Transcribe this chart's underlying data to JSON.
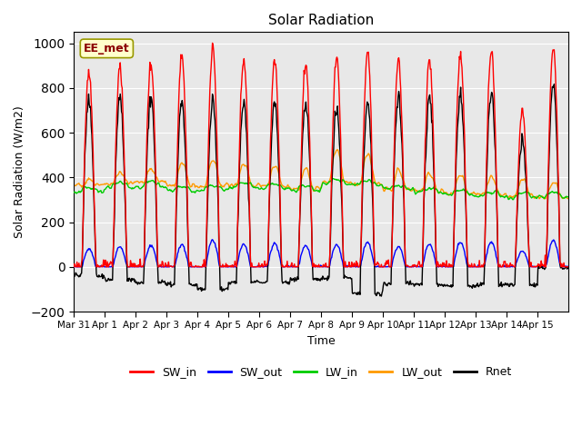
{
  "title": "Solar Radiation",
  "ylabel": "Solar Radiation (W/m2)",
  "xlabel": "Time",
  "annotation": "EE_met",
  "ylim": [
    -200,
    1050
  ],
  "background_color": "#e8e8e8",
  "tick_labels": [
    "Mar 31",
    "Apr 1",
    "Apr 2",
    "Apr 3",
    "Apr 4",
    "Apr 5",
    "Apr 6",
    "Apr 7",
    "Apr 8",
    "Apr 9",
    "Apr 10",
    "Apr 11",
    "Apr 12",
    "Apr 13",
    "Apr 14",
    "Apr 15"
  ],
  "series": {
    "SW_in": {
      "color": "#ff0000",
      "linewidth": 1.0
    },
    "SW_out": {
      "color": "#0000ff",
      "linewidth": 1.0
    },
    "LW_in": {
      "color": "#00cc00",
      "linewidth": 1.0
    },
    "LW_out": {
      "color": "#ff9900",
      "linewidth": 1.0
    },
    "Rnet": {
      "color": "#000000",
      "linewidth": 1.0
    }
  },
  "n_days": 16,
  "pts_per_day": 48,
  "peaks_SW_in": [
    870,
    900,
    910,
    950,
    980,
    920,
    920,
    910,
    940,
    960,
    920,
    930,
    950,
    970,
    700,
    975
  ],
  "peaks_SW_out": [
    80,
    90,
    95,
    100,
    120,
    100,
    105,
    95,
    100,
    110,
    90,
    100,
    110,
    110,
    70,
    120
  ],
  "lw_in_base": [
    335,
    355,
    360,
    340,
    345,
    355,
    350,
    340,
    370,
    365,
    345,
    330,
    320,
    315,
    310,
    310
  ],
  "lw_out_day": [
    390,
    420,
    440,
    460,
    480,
    460,
    450,
    440,
    520,
    510,
    430,
    420,
    410,
    400,
    390,
    380
  ],
  "lw_out_night": [
    365,
    375,
    380,
    365,
    360,
    365,
    360,
    350,
    375,
    370,
    345,
    340,
    330,
    325,
    315,
    310
  ],
  "rnet_night": [
    -40,
    -60,
    -70,
    -80,
    -100,
    -70,
    -70,
    -55,
    -50,
    -120,
    -75,
    -80,
    -85,
    -80,
    -80,
    -5
  ]
}
